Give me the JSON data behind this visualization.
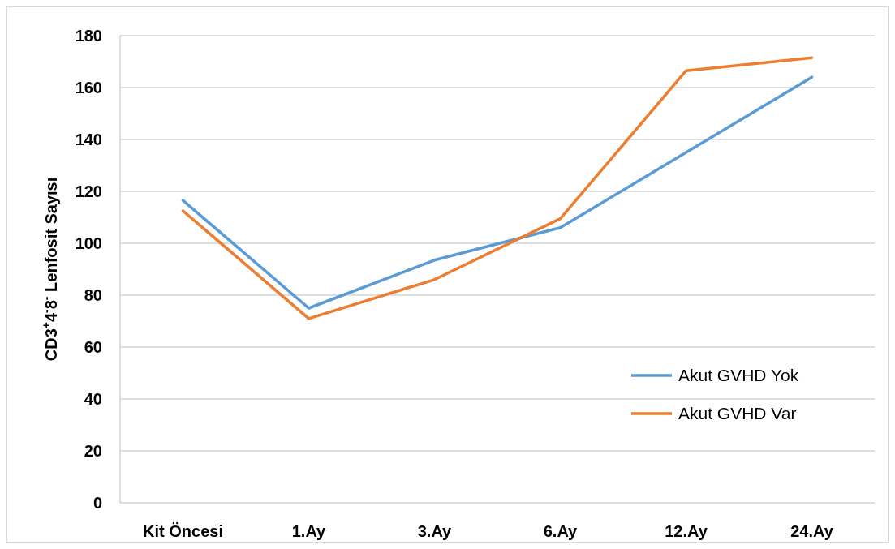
{
  "chart_data": {
    "type": "line",
    "ylabel": "CD3$^{+}$4$^{-}$8$^{-}$  Lenfosit Sayısı",
    "categories": [
      "Kit Öncesi",
      "1.Ay",
      "3.Ay",
      "6.Ay",
      "12.Ay",
      "24.Ay"
    ],
    "series": [
      {
        "name": "Akut GVHD Yok",
        "color": "#5b9bd5",
        "values": [
          116.5,
          75,
          93.5,
          106,
          135,
          164
        ]
      },
      {
        "name": "Akut GVHD Var",
        "color": "#ed7d31",
        "values": [
          112.5,
          71,
          86,
          109.5,
          166.5,
          171.5
        ]
      }
    ],
    "ylim": [
      0,
      180
    ],
    "yticks": [
      0,
      20,
      40,
      60,
      80,
      100,
      120,
      140,
      160,
      180
    ],
    "grid": "y",
    "legend": "right",
    "marker": "none"
  }
}
